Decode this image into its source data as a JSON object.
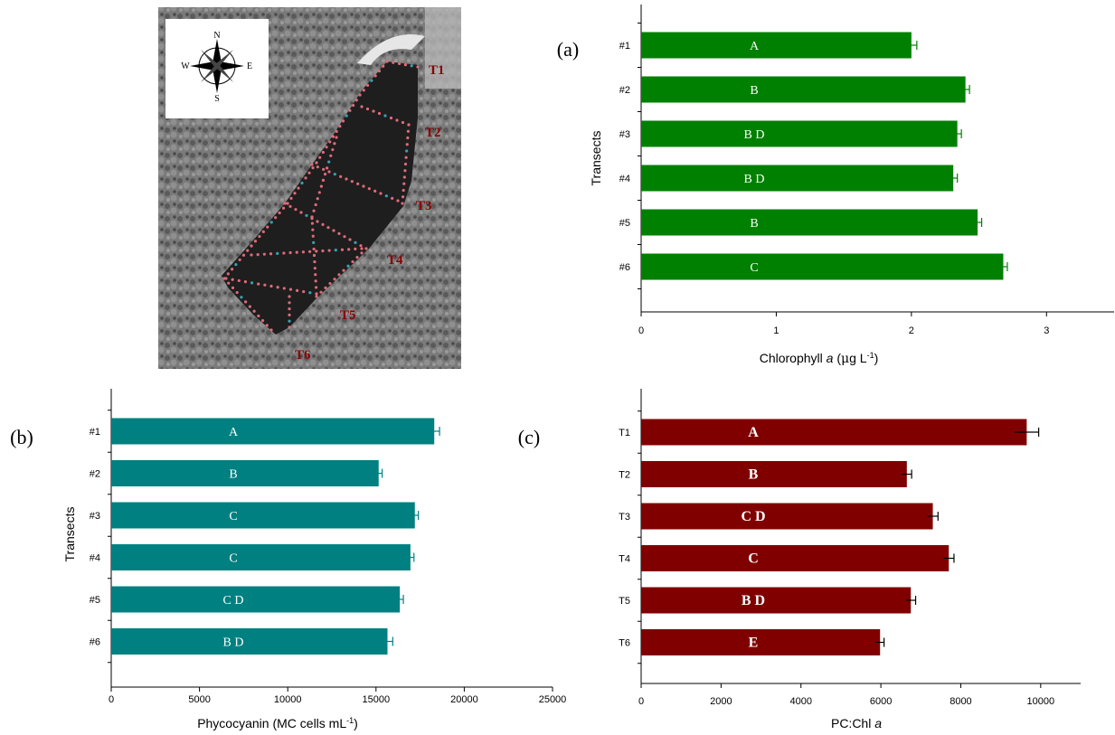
{
  "map": {
    "transect_labels": [
      "T1",
      "T2",
      "T3",
      "T4",
      "T5",
      "T6"
    ],
    "compass": {
      "n": "N",
      "s": "S",
      "e": "E",
      "w": "W"
    }
  },
  "chart_data": [
    {
      "id": "a",
      "type": "bar",
      "orientation": "horizontal",
      "panel_label": "(a)",
      "categories": [
        "#1",
        "#2",
        "#3",
        "#4",
        "#5",
        "#6"
      ],
      "values": [
        2.0,
        2.4,
        2.34,
        2.31,
        2.49,
        2.68
      ],
      "errors": [
        0.04,
        0.03,
        0.03,
        0.03,
        0.03,
        0.03
      ],
      "group_letters": [
        "A",
        "B",
        "B D",
        "B D",
        "B",
        "C"
      ],
      "xlabel_parts": [
        "Chlorophyll ",
        "a",
        " (",
        "μ",
        "g L",
        "-1",
        ")"
      ],
      "ylabel": "Transects",
      "xlim": [
        0,
        3.5
      ],
      "xticks": [
        "0",
        "1",
        "2",
        "3"
      ],
      "xtick_values": [
        0,
        1,
        2,
        3
      ],
      "bar_color": "#008000",
      "error_color": "#008000"
    },
    {
      "id": "b",
      "type": "bar",
      "orientation": "horizontal",
      "panel_label": "(b)",
      "categories": [
        "#1",
        "#2",
        "#3",
        "#4",
        "#5",
        "#6"
      ],
      "values": [
        18300,
        15150,
        17200,
        16950,
        16350,
        15650
      ],
      "errors": [
        300,
        200,
        200,
        200,
        200,
        300
      ],
      "group_letters": [
        "A",
        "B",
        "C",
        "C",
        "C D",
        "B D"
      ],
      "xlabel_parts": [
        "Phycocyanin (MC cells mL",
        "-1",
        ")"
      ],
      "ylabel": "Transects",
      "xlim": [
        0,
        25000
      ],
      "xticks": [
        "0",
        "5000",
        "10000",
        "15000",
        "20000",
        "25000"
      ],
      "xtick_values": [
        0,
        5000,
        10000,
        15000,
        20000,
        25000
      ],
      "bar_color": "#008080",
      "error_color": "#008080"
    },
    {
      "id": "c",
      "type": "bar",
      "orientation": "horizontal",
      "panel_label": "(c)",
      "categories": [
        "T1",
        "T2",
        "T3",
        "T4",
        "T5",
        "T6"
      ],
      "values": [
        9650,
        6650,
        7300,
        7700,
        6750,
        5980
      ],
      "errors": [
        300,
        120,
        130,
        130,
        120,
        100
      ],
      "group_letters": [
        "A",
        "B",
        "C D",
        "C",
        "B D",
        "E"
      ],
      "xlabel_parts": [
        "PC:Chl ",
        "a"
      ],
      "ylabel": "",
      "xlim": [
        0,
        11000
      ],
      "xticks": [
        "0",
        "2000",
        "4000",
        "6000",
        "8000",
        "10000"
      ],
      "xtick_values": [
        0,
        2000,
        4000,
        6000,
        8000,
        10000
      ],
      "bar_color": "#800000",
      "error_color": "#000000"
    }
  ]
}
